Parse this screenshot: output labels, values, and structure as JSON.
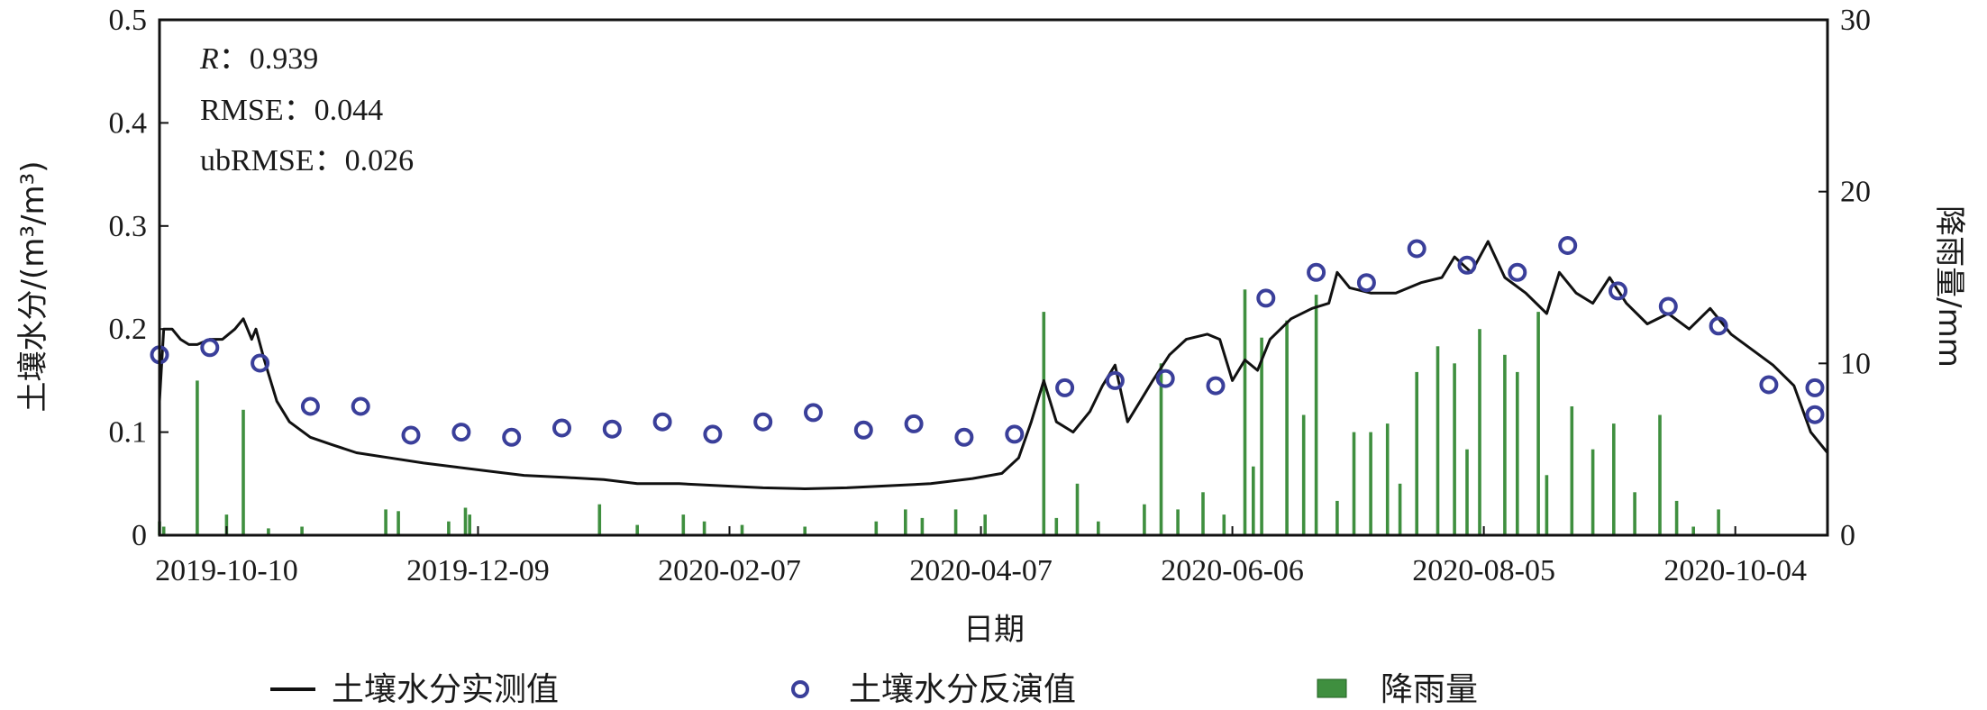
{
  "chart_data": {
    "type": "line",
    "title": "",
    "xlabel": "日期",
    "ylabel": "土壤水分/(m³/m³)",
    "y2label": "降雨量/mm",
    "x_range": [
      "2019-09-24",
      "2020-10-26"
    ],
    "ylim": [
      0,
      0.5
    ],
    "y2lim": [
      0,
      30
    ],
    "y_ticks": [
      "0",
      "0.1",
      "0.2",
      "0.3",
      "0.4",
      "0.5"
    ],
    "y2_ticks": [
      "0",
      "10",
      "20",
      "30"
    ],
    "x_ticks": [
      "2019-10-10",
      "2019-12-09",
      "2020-02-07",
      "2020-04-07",
      "2020-06-06",
      "2020-08-05",
      "2020-10-04"
    ],
    "grid": false,
    "legend_position": "bottom",
    "annotations": [
      {
        "label": "R",
        "value": "：0.939"
      },
      {
        "label": "RMSE",
        "value": "：0.044"
      },
      {
        "label": "ubRMSE",
        "value": "：0.026"
      }
    ],
    "colors": {
      "measured": "#111111",
      "retrieved": "#3a3f9a",
      "rain": "#3f8f3f"
    },
    "series": [
      {
        "name": "土壤水分实测值",
        "type": "line",
        "points": [
          [
            "2019-09-24",
            0.13
          ],
          [
            "2019-09-25",
            0.2
          ],
          [
            "2019-09-27",
            0.2
          ],
          [
            "2019-09-29",
            0.19
          ],
          [
            "2019-10-01",
            0.185
          ],
          [
            "2019-10-03",
            0.185
          ],
          [
            "2019-10-06",
            0.19
          ],
          [
            "2019-10-09",
            0.19
          ],
          [
            "2019-10-12",
            0.2
          ],
          [
            "2019-10-14",
            0.21
          ],
          [
            "2019-10-16",
            0.19
          ],
          [
            "2019-10-17",
            0.2
          ],
          [
            "2019-10-19",
            0.17
          ],
          [
            "2019-10-22",
            0.13
          ],
          [
            "2019-10-25",
            0.11
          ],
          [
            "2019-10-30",
            0.095
          ],
          [
            "2019-11-04",
            0.088
          ],
          [
            "2019-11-10",
            0.08
          ],
          [
            "2019-11-18",
            0.075
          ],
          [
            "2019-11-26",
            0.07
          ],
          [
            "2019-12-04",
            0.066
          ],
          [
            "2019-12-12",
            0.062
          ],
          [
            "2019-12-20",
            0.058
          ],
          [
            "2019-12-30",
            0.056
          ],
          [
            "2020-01-08",
            0.054
          ],
          [
            "2020-01-16",
            0.05
          ],
          [
            "2020-01-26",
            0.05
          ],
          [
            "2020-02-05",
            0.048
          ],
          [
            "2020-02-15",
            0.046
          ],
          [
            "2020-02-25",
            0.045
          ],
          [
            "2020-03-06",
            0.046
          ],
          [
            "2020-03-16",
            0.048
          ],
          [
            "2020-03-26",
            0.05
          ],
          [
            "2020-04-05",
            0.055
          ],
          [
            "2020-04-12",
            0.06
          ],
          [
            "2020-04-16",
            0.075
          ],
          [
            "2020-04-19",
            0.11
          ],
          [
            "2020-04-22",
            0.15
          ],
          [
            "2020-04-25",
            0.11
          ],
          [
            "2020-04-29",
            0.1
          ],
          [
            "2020-05-03",
            0.12
          ],
          [
            "2020-05-06",
            0.145
          ],
          [
            "2020-05-09",
            0.165
          ],
          [
            "2020-05-12",
            0.11
          ],
          [
            "2020-05-15",
            0.13
          ],
          [
            "2020-05-18",
            0.15
          ],
          [
            "2020-05-22",
            0.175
          ],
          [
            "2020-05-26",
            0.19
          ],
          [
            "2020-05-31",
            0.195
          ],
          [
            "2020-06-03",
            0.19
          ],
          [
            "2020-06-06",
            0.15
          ],
          [
            "2020-06-09",
            0.17
          ],
          [
            "2020-06-12",
            0.16
          ],
          [
            "2020-06-15",
            0.19
          ],
          [
            "2020-06-20",
            0.21
          ],
          [
            "2020-06-25",
            0.22
          ],
          [
            "2020-06-29",
            0.225
          ],
          [
            "2020-07-01",
            0.255
          ],
          [
            "2020-07-04",
            0.24
          ],
          [
            "2020-07-09",
            0.235
          ],
          [
            "2020-07-15",
            0.235
          ],
          [
            "2020-07-21",
            0.245
          ],
          [
            "2020-07-26",
            0.25
          ],
          [
            "2020-07-29",
            0.27
          ],
          [
            "2020-08-02",
            0.255
          ],
          [
            "2020-08-06",
            0.285
          ],
          [
            "2020-08-10",
            0.25
          ],
          [
            "2020-08-15",
            0.235
          ],
          [
            "2020-08-20",
            0.215
          ],
          [
            "2020-08-23",
            0.255
          ],
          [
            "2020-08-27",
            0.235
          ],
          [
            "2020-08-31",
            0.225
          ],
          [
            "2020-09-04",
            0.25
          ],
          [
            "2020-09-08",
            0.225
          ],
          [
            "2020-09-13",
            0.205
          ],
          [
            "2020-09-18",
            0.215
          ],
          [
            "2020-09-23",
            0.2
          ],
          [
            "2020-09-28",
            0.22
          ],
          [
            "2020-10-03",
            0.195
          ],
          [
            "2020-10-08",
            0.18
          ],
          [
            "2020-10-13",
            0.165
          ],
          [
            "2020-10-18",
            0.145
          ],
          [
            "2020-10-22",
            0.1
          ],
          [
            "2020-10-26",
            0.08
          ]
        ]
      },
      {
        "name": "土壤水分反演值",
        "type": "scatter",
        "points": [
          [
            "2019-09-24",
            0.175
          ],
          [
            "2019-10-06",
            0.182
          ],
          [
            "2019-10-18",
            0.167
          ],
          [
            "2019-10-30",
            0.125
          ],
          [
            "2019-11-11",
            0.125
          ],
          [
            "2019-11-23",
            0.097
          ],
          [
            "2019-12-05",
            0.1
          ],
          [
            "2019-12-17",
            0.095
          ],
          [
            "2019-12-29",
            0.104
          ],
          [
            "2020-01-10",
            0.103
          ],
          [
            "2020-01-22",
            0.11
          ],
          [
            "2020-02-03",
            0.098
          ],
          [
            "2020-02-15",
            0.11
          ],
          [
            "2020-02-27",
            0.119
          ],
          [
            "2020-03-10",
            0.102
          ],
          [
            "2020-03-22",
            0.108
          ],
          [
            "2020-04-03",
            0.095
          ],
          [
            "2020-04-15",
            0.098
          ],
          [
            "2020-04-27",
            0.143
          ],
          [
            "2020-05-09",
            0.15
          ],
          [
            "2020-05-21",
            0.152
          ],
          [
            "2020-06-02",
            0.145
          ],
          [
            "2020-06-14",
            0.23
          ],
          [
            "2020-06-26",
            0.255
          ],
          [
            "2020-07-08",
            0.245
          ],
          [
            "2020-07-20",
            0.278
          ],
          [
            "2020-08-01",
            0.262
          ],
          [
            "2020-08-13",
            0.255
          ],
          [
            "2020-08-25",
            0.281
          ],
          [
            "2020-09-06",
            0.237
          ],
          [
            "2020-09-18",
            0.222
          ],
          [
            "2020-09-30",
            0.203
          ],
          [
            "2020-10-12",
            0.146
          ],
          [
            "2020-10-24",
            0.143
          ],
          [
            "2020-11-05",
            0.117
          ]
        ]
      },
      {
        "name": "降雨量",
        "type": "bar",
        "axis": "right",
        "points": [
          [
            "2019-09-24",
            0.8
          ],
          [
            "2019-09-25",
            0.5
          ],
          [
            "2019-10-03",
            9.0
          ],
          [
            "2019-10-10",
            1.2
          ],
          [
            "2019-10-14",
            7.3
          ],
          [
            "2019-10-20",
            0.4
          ],
          [
            "2019-10-28",
            0.5
          ],
          [
            "2019-11-17",
            1.5
          ],
          [
            "2019-11-20",
            1.4
          ],
          [
            "2019-12-02",
            0.8
          ],
          [
            "2019-12-06",
            1.6
          ],
          [
            "2019-12-07",
            1.2
          ],
          [
            "2020-01-07",
            1.8
          ],
          [
            "2020-01-16",
            0.6
          ],
          [
            "2020-01-27",
            1.2
          ],
          [
            "2020-02-01",
            0.8
          ],
          [
            "2020-02-10",
            0.6
          ],
          [
            "2020-02-25",
            0.5
          ],
          [
            "2020-03-13",
            0.8
          ],
          [
            "2020-03-20",
            1.5
          ],
          [
            "2020-03-24",
            1.0
          ],
          [
            "2020-04-01",
            1.5
          ],
          [
            "2020-04-08",
            1.2
          ],
          [
            "2020-04-22",
            13.0
          ],
          [
            "2020-04-25",
            1.0
          ],
          [
            "2020-04-30",
            3.0
          ],
          [
            "2020-05-05",
            0.8
          ],
          [
            "2020-05-16",
            1.8
          ],
          [
            "2020-05-20",
            10.0
          ],
          [
            "2020-05-24",
            1.5
          ],
          [
            "2020-05-30",
            2.5
          ],
          [
            "2020-06-04",
            1.2
          ],
          [
            "2020-06-09",
            14.3
          ],
          [
            "2020-06-11",
            4.0
          ],
          [
            "2020-06-13",
            11.5
          ],
          [
            "2020-06-19",
            12.5
          ],
          [
            "2020-06-23",
            7.0
          ],
          [
            "2020-06-26",
            14.0
          ],
          [
            "2020-07-01",
            2.0
          ],
          [
            "2020-07-05",
            6.0
          ],
          [
            "2020-07-09",
            6.0
          ],
          [
            "2020-07-13",
            6.5
          ],
          [
            "2020-07-16",
            3.0
          ],
          [
            "2020-07-20",
            9.5
          ],
          [
            "2020-07-25",
            11.0
          ],
          [
            "2020-07-29",
            10.0
          ],
          [
            "2020-08-01",
            5.0
          ],
          [
            "2020-08-04",
            12.0
          ],
          [
            "2020-08-10",
            10.5
          ],
          [
            "2020-08-13",
            9.5
          ],
          [
            "2020-08-18",
            13.0
          ],
          [
            "2020-08-20",
            3.5
          ],
          [
            "2020-08-26",
            7.5
          ],
          [
            "2020-08-31",
            5.0
          ],
          [
            "2020-09-05",
            6.5
          ],
          [
            "2020-09-10",
            2.5
          ],
          [
            "2020-09-16",
            7.0
          ],
          [
            "2020-09-20",
            2.0
          ],
          [
            "2020-09-24",
            0.5
          ],
          [
            "2020-09-30",
            1.5
          ]
        ]
      }
    ]
  }
}
